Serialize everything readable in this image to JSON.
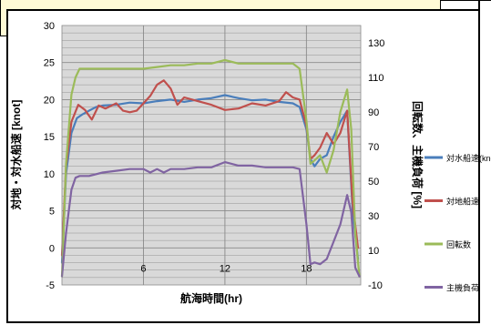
{
  "chart_data": {
    "type": "line",
    "xlabel": "航海時間(hr)",
    "ylabel_left": "対地・対水船速 [knot]",
    "ylabel_right": "回転数、主機負荷 [%]",
    "xlim": [
      0,
      22
    ],
    "ylim_left": [
      -5,
      30
    ],
    "ylim_right": [
      -10,
      140
    ],
    "x_ticks": [
      6,
      12,
      18
    ],
    "y_ticks_left": [
      -5,
      0,
      5,
      10,
      15,
      20,
      25,
      30
    ],
    "y_ticks_right": [
      -10,
      10,
      30,
      50,
      70,
      90,
      110,
      130
    ],
    "grid": true,
    "legend_position": "right",
    "series": [
      {
        "name": "対水船速(knot)",
        "axis": "left",
        "color": "#4a7ebb",
        "x": [
          0,
          0.3,
          0.7,
          1.1,
          1.5,
          2,
          2.5,
          3,
          4,
          5,
          6,
          7,
          8,
          9,
          10,
          11,
          12,
          13,
          14,
          15,
          16,
          17,
          17.5,
          18,
          18.3,
          18.6,
          19,
          19.5,
          20,
          20.5,
          21,
          21.4,
          21.8
        ],
        "y": [
          -2,
          10,
          15.5,
          17.5,
          18,
          18.5,
          19,
          19.2,
          19.3,
          19.6,
          19.5,
          19.8,
          20,
          19.7,
          20,
          20.2,
          20.6,
          20.2,
          19.9,
          20,
          19.7,
          19.5,
          19,
          16,
          12,
          11,
          12,
          12.5,
          15,
          17,
          18.5,
          5,
          -1.5
        ]
      },
      {
        "name": "対地船速",
        "axis": "left",
        "color": "#c0504d",
        "x": [
          0,
          0.3,
          0.7,
          1.2,
          1.7,
          2.2,
          2.7,
          3.2,
          4,
          4.5,
          5,
          5.5,
          6,
          6.5,
          7,
          7.5,
          8,
          8.5,
          9,
          10,
          11,
          12,
          13,
          14,
          15,
          16,
          16.5,
          17,
          17.5,
          18,
          18.3,
          18.6,
          19,
          19.5,
          20,
          20.5,
          21,
          21.4,
          21.8
        ],
        "y": [
          -1,
          11,
          17,
          19.3,
          18.6,
          17.3,
          19.2,
          18.8,
          19.5,
          18.5,
          18.3,
          18.5,
          19.5,
          20.5,
          22,
          22.6,
          21.5,
          19.3,
          20.3,
          19.8,
          19.3,
          18.6,
          18.8,
          19.5,
          19.2,
          19.8,
          21,
          20.3,
          20,
          16.5,
          12,
          12.5,
          13.5,
          15.5,
          14,
          15.5,
          18.5,
          6,
          0
        ]
      },
      {
        "name": "回転数",
        "axis": "right",
        "color": "#9bbb59",
        "x": [
          0,
          0.3,
          0.7,
          1,
          1.3,
          2,
          4,
          6,
          7,
          8,
          9,
          10,
          11,
          12,
          13,
          14,
          15,
          16,
          17,
          17.5,
          18,
          18.3,
          18.6,
          19,
          19.5,
          20,
          20.5,
          21,
          21.3,
          21.6,
          21.9
        ],
        "y": [
          -5,
          60,
          100,
          110,
          115,
          115,
          115,
          115,
          116,
          117,
          117,
          118,
          118,
          120,
          118,
          118,
          118,
          118,
          118,
          115,
          85,
          60,
          62,
          65,
          55,
          68,
          90,
          103,
          80,
          20,
          -5
        ]
      },
      {
        "name": "主機負荷",
        "axis": "right",
        "color": "#8064a2",
        "x": [
          0,
          0.3,
          0.7,
          1,
          1.3,
          2,
          3,
          4,
          5,
          6,
          6.5,
          7,
          7.5,
          8,
          9,
          10,
          11,
          12,
          13,
          14,
          15,
          16,
          17,
          17.5,
          18,
          18.3,
          18.6,
          19,
          19.5,
          20,
          20.5,
          21,
          21.3,
          21.6,
          21.9
        ],
        "y": [
          -5,
          20,
          45,
          52,
          53,
          53,
          55,
          56,
          57,
          57,
          55,
          57,
          55,
          57,
          57,
          58,
          58,
          61,
          59,
          59,
          58,
          58,
          58,
          57,
          25,
          2,
          3,
          2,
          5,
          15,
          25,
          42,
          32,
          0,
          -5
        ]
      }
    ]
  },
  "theme": {
    "plot_background": "#d9d9d9",
    "gridline": "#8a8a8a",
    "note_background": "#fffbd6"
  }
}
